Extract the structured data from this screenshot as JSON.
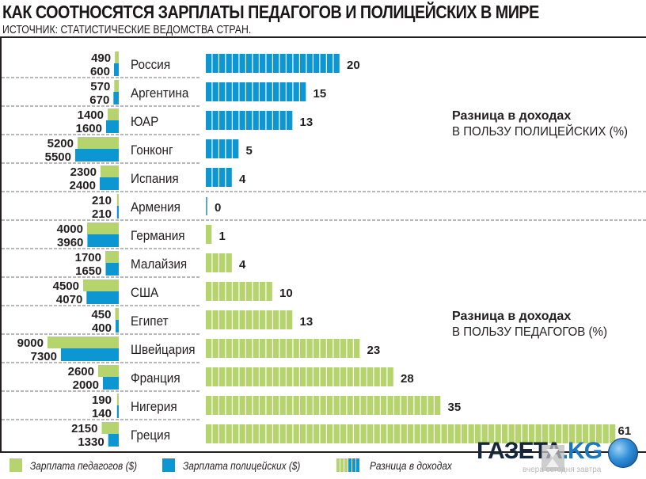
{
  "header": {
    "title": "КАК СООТНОСЯТСЯ ЗАРПЛАТЫ ПЕДАГОГОВ И ПОЛИЦЕЙСКИХ В МИРЕ",
    "subtitle": "ИСТОЧНИК: СТАТИСТИЧЕСКИЕ ВЕДОМСТВА СТРАН."
  },
  "annotations": {
    "police": {
      "bold": "Разница в доходах",
      "normal": "В ПОЛЬЗУ ПОЛИЦЕЙСКИХ (%)"
    },
    "teachers": {
      "bold": "Разница в доходах",
      "normal": "В ПОЛЬЗУ ПЕДАГОГОВ (%)"
    }
  },
  "legend": {
    "teachers": "Зарплата педагогов ($)",
    "police": "Зарплата полицейских ($)",
    "difference": "Разница в доходах"
  },
  "colors": {
    "teachers": "#b5d46e",
    "police": "#0d97d2",
    "text": "#231f20",
    "separator": "#7a7a7a"
  },
  "watermark": {
    "brand": "ГАЗЕТА",
    "domain": ".KG",
    "tagline": "вчера сегодня завтра"
  },
  "chart_data": {
    "type": "bar",
    "title": "КАК СООТНОСЯТСЯ ЗАРПЛАТЫ ПЕДАГОГОВ И ПОЛИЦЕЙСКИХ В МИРЕ",
    "subtitle": "ИСТОЧНИК: СТАТИСТИЧЕСКИЕ ВЕДОМСТВА СТРАН.",
    "categories": [
      "Россия",
      "Аргентина",
      "ЮАР",
      "Гонконг",
      "Испания",
      "Армения",
      "Германия",
      "Малайзия",
      "США",
      "Египет",
      "Швейцария",
      "Франция",
      "Нигерия",
      "Греция"
    ],
    "series": [
      {
        "name": "Зарплата педагогов ($)",
        "color": "#b5d46e",
        "values": [
          490,
          570,
          1400,
          5200,
          2300,
          210,
          4000,
          1700,
          4500,
          450,
          9000,
          2600,
          190,
          2150
        ]
      },
      {
        "name": "Зарплата полицейских ($)",
        "color": "#0d97d2",
        "values": [
          600,
          670,
          1600,
          5500,
          2400,
          210,
          3960,
          1650,
          4070,
          400,
          7300,
          2000,
          140,
          1330
        ]
      },
      {
        "name": "Разница в доходах (%)",
        "values": [
          20,
          15,
          13,
          5,
          4,
          0,
          1,
          4,
          10,
          13,
          23,
          28,
          35,
          61
        ],
        "favor": [
          "police",
          "police",
          "police",
          "police",
          "police",
          "none",
          "teachers",
          "teachers",
          "teachers",
          "teachers",
          "teachers",
          "teachers",
          "teachers",
          "teachers"
        ]
      }
    ],
    "xlabel": "",
    "ylabel": "",
    "grid": false,
    "legend_position": "bottom"
  }
}
